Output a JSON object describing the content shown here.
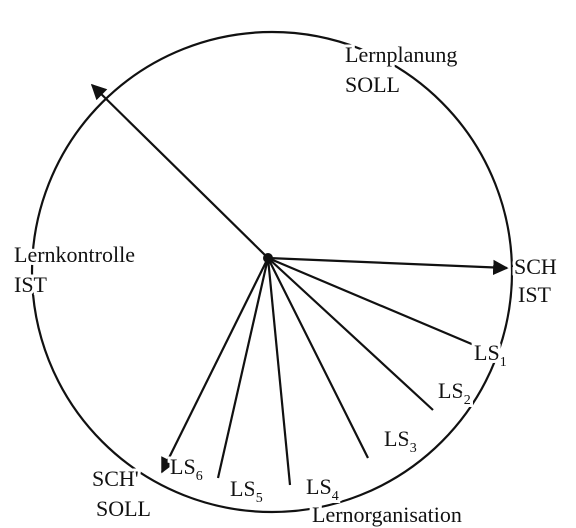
{
  "labels": {
    "planning": [
      "Lernplanung",
      "SOLL"
    ],
    "sch_ist": [
      "SCH",
      "IST"
    ],
    "control": [
      "Lernkontrolle",
      "IST"
    ],
    "sch_soll": [
      "SCH'",
      "SOLL"
    ],
    "organisation": "Lernorganisation",
    "steps": [
      {
        "text": "LS",
        "sub": "1"
      },
      {
        "text": "LS",
        "sub": "2"
      },
      {
        "text": "LS",
        "sub": "3"
      },
      {
        "text": "LS",
        "sub": "4"
      },
      {
        "text": "LS",
        "sub": "5"
      },
      {
        "text": "LS",
        "sub": "6"
      }
    ]
  }
}
